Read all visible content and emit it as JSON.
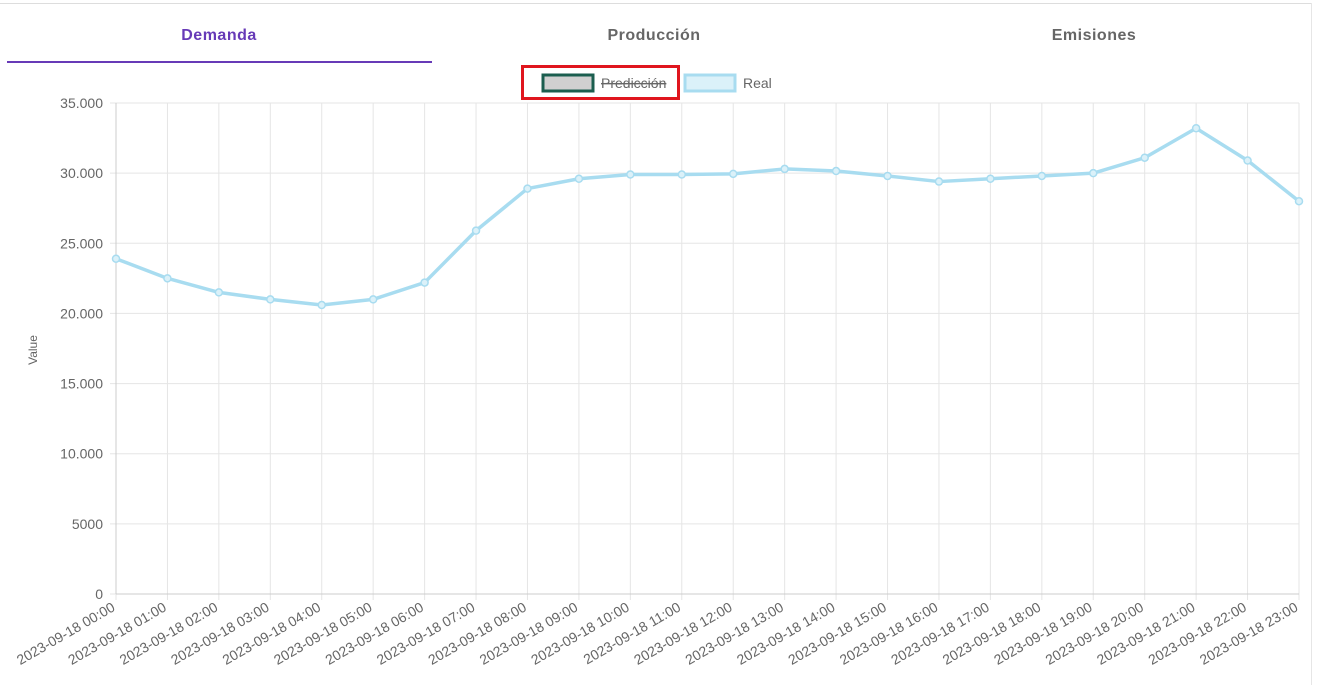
{
  "tabs": [
    "Demanda",
    "Producción",
    "Emisiones"
  ],
  "chart_data": {
    "type": "line",
    "y_label": "Value",
    "categories": [
      "2023-09-18 00:00",
      "2023-09-18 01:00",
      "2023-09-18 02:00",
      "2023-09-18 03:00",
      "2023-09-18 04:00",
      "2023-09-18 05:00",
      "2023-09-18 06:00",
      "2023-09-18 07:00",
      "2023-09-18 08:00",
      "2023-09-18 09:00",
      "2023-09-18 10:00",
      "2023-09-18 11:00",
      "2023-09-18 12:00",
      "2023-09-18 13:00",
      "2023-09-18 14:00",
      "2023-09-18 15:00",
      "2023-09-18 16:00",
      "2023-09-18 17:00",
      "2023-09-18 18:00",
      "2023-09-18 19:00",
      "2023-09-18 20:00",
      "2023-09-18 21:00",
      "2023-09-18 22:00",
      "2023-09-18 23:00"
    ],
    "series": [
      {
        "name": "Predicción",
        "color": "#1b5e4f",
        "hidden": true,
        "values": [
          null,
          null,
          null,
          null,
          null,
          null,
          null,
          null,
          null,
          null,
          null,
          null,
          null,
          null,
          null,
          null,
          null,
          null,
          null,
          null,
          null,
          null,
          null,
          null
        ]
      },
      {
        "name": "Real",
        "color": "#a8dcf0",
        "hidden": false,
        "values": [
          23900,
          22500,
          21500,
          21000,
          20600,
          21000,
          22200,
          25900,
          28900,
          29600,
          29900,
          29900,
          29950,
          30300,
          30150,
          29800,
          29400,
          29600,
          29800,
          30000,
          31100,
          33200,
          30900,
          28000
        ]
      }
    ],
    "ylim": [
      0,
      35000
    ],
    "yticks": [
      0,
      5000,
      {
        "value": 10000,
        "label": "10.000"
      },
      {
        "value": 15000,
        "label": "15.000"
      },
      {
        "value": 20000,
        "label": "20.000"
      },
      {
        "value": 25000,
        "label": "25.000"
      },
      {
        "value": 30000,
        "label": "30.000"
      },
      {
        "value": 35000,
        "label": "35.000"
      }
    ],
    "grid": true
  }
}
